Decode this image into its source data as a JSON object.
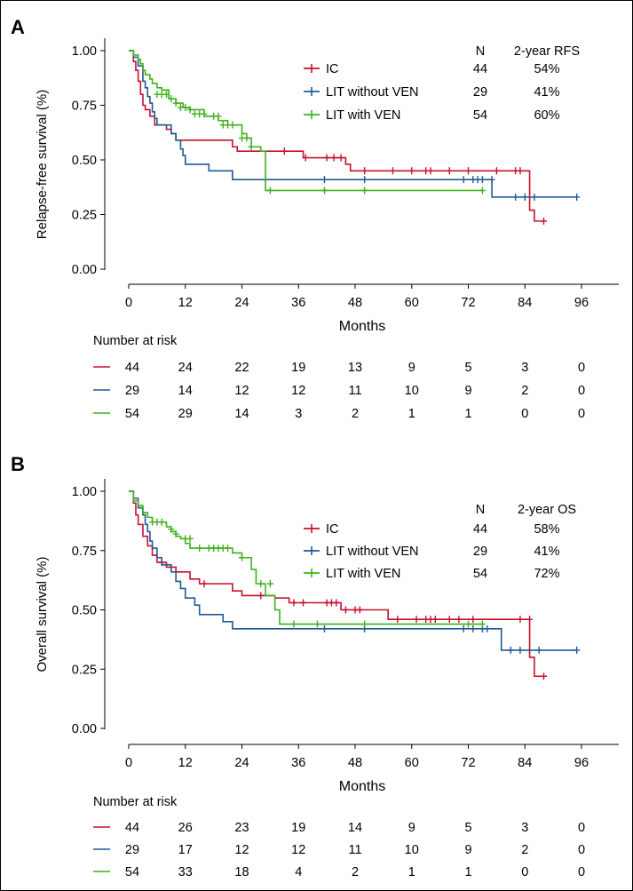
{
  "chart_data": [
    {
      "type": "line",
      "panel_label": "A",
      "ylabel": "Relapse-free survival (%)",
      "xlabel": "Months",
      "xlim": [
        0,
        96
      ],
      "ylim": [
        0,
        1
      ],
      "x_ticks": [
        "0",
        "12",
        "24",
        "36",
        "48",
        "60",
        "72",
        "84",
        "96"
      ],
      "y_ticks": [
        "0.00",
        "0.25",
        "0.50",
        "0.75",
        "1.00"
      ],
      "legend": {
        "position": "top-right",
        "header_n": "N",
        "header_stat": "2-year RFS",
        "entries": [
          {
            "name": "IC",
            "n": "44",
            "stat": "54%"
          },
          {
            "name": "LIT without VEN",
            "n": "29",
            "stat": "41%"
          },
          {
            "name": "LIT with VEN",
            "n": "54",
            "stat": "60%"
          }
        ]
      },
      "series": [
        {
          "name": "IC",
          "color": "#c8102e",
          "steps": [
            [
              0,
              1.0
            ],
            [
              1,
              0.95
            ],
            [
              1.5,
              0.91
            ],
            [
              2,
              0.86
            ],
            [
              2.5,
              0.8
            ],
            [
              3,
              0.75
            ],
            [
              3.5,
              0.73
            ],
            [
              4.5,
              0.7
            ],
            [
              5.5,
              0.66
            ],
            [
              8,
              0.64
            ],
            [
              9,
              0.62
            ],
            [
              10,
              0.59
            ],
            [
              22,
              0.56
            ],
            [
              23,
              0.54
            ],
            [
              37,
              0.51
            ],
            [
              46,
              0.48
            ],
            [
              47,
              0.45
            ],
            [
              85,
              0.27
            ],
            [
              86,
              0.22
            ],
            [
              88,
              0.22
            ]
          ],
          "censors": [
            [
              33,
              0.54
            ],
            [
              37.5,
              0.51
            ],
            [
              42,
              0.51
            ],
            [
              43.5,
              0.51
            ],
            [
              45,
              0.51
            ],
            [
              50,
              0.45
            ],
            [
              56,
              0.45
            ],
            [
              60,
              0.45
            ],
            [
              63,
              0.45
            ],
            [
              64,
              0.45
            ],
            [
              68,
              0.45
            ],
            [
              72,
              0.45
            ],
            [
              78,
              0.45
            ],
            [
              82,
              0.45
            ],
            [
              83,
              0.45
            ],
            [
              88,
              0.22
            ]
          ]
        },
        {
          "name": "LIT without VEN",
          "color": "#1f5a96",
          "steps": [
            [
              0,
              1.0
            ],
            [
              1,
              0.97
            ],
            [
              2,
              0.93
            ],
            [
              3,
              0.86
            ],
            [
              3.5,
              0.83
            ],
            [
              4,
              0.79
            ],
            [
              4.5,
              0.76
            ],
            [
              5,
              0.72
            ],
            [
              5.5,
              0.69
            ],
            [
              6,
              0.66
            ],
            [
              9,
              0.62
            ],
            [
              10,
              0.59
            ],
            [
              11,
              0.55
            ],
            [
              11.5,
              0.52
            ],
            [
              12,
              0.48
            ],
            [
              17,
              0.45
            ],
            [
              22,
              0.41
            ],
            [
              77,
              0.33
            ],
            [
              95,
              0.33
            ]
          ],
          "censors": [
            [
              41.5,
              0.41
            ],
            [
              50,
              0.41
            ],
            [
              71,
              0.41
            ],
            [
              73,
              0.41
            ],
            [
              74,
              0.41
            ],
            [
              75,
              0.41
            ],
            [
              77,
              0.41
            ],
            [
              82,
              0.33
            ],
            [
              84,
              0.33
            ],
            [
              86,
              0.33
            ],
            [
              95,
              0.33
            ]
          ]
        },
        {
          "name": "LIT with VEN",
          "color": "#3cb21a",
          "steps": [
            [
              0,
              1.0
            ],
            [
              1,
              0.98
            ],
            [
              2,
              0.96
            ],
            [
              2.5,
              0.94
            ],
            [
              3,
              0.91
            ],
            [
              3.5,
              0.89
            ],
            [
              4.5,
              0.87
            ],
            [
              5,
              0.85
            ],
            [
              6,
              0.83
            ],
            [
              7,
              0.82
            ],
            [
              8.5,
              0.78
            ],
            [
              10,
              0.76
            ],
            [
              11.5,
              0.74
            ],
            [
              13,
              0.73
            ],
            [
              16,
              0.7
            ],
            [
              19,
              0.68
            ],
            [
              21,
              0.66
            ],
            [
              24,
              0.62
            ],
            [
              25,
              0.6
            ],
            [
              26,
              0.56
            ],
            [
              28,
              0.54
            ],
            [
              29,
              0.36
            ],
            [
              75,
              0.36
            ]
          ],
          "censors": [
            [
              6,
              0.8
            ],
            [
              7,
              0.8
            ],
            [
              8,
              0.8
            ],
            [
              9,
              0.78
            ],
            [
              10,
              0.76
            ],
            [
              11,
              0.74
            ],
            [
              12,
              0.74
            ],
            [
              13,
              0.73
            ],
            [
              14,
              0.71
            ],
            [
              15,
              0.71
            ],
            [
              16,
              0.71
            ],
            [
              18,
              0.7
            ],
            [
              19,
              0.7
            ],
            [
              20,
              0.66
            ],
            [
              21,
              0.66
            ],
            [
              22,
              0.66
            ],
            [
              24,
              0.6
            ],
            [
              25,
              0.6
            ],
            [
              26,
              0.56
            ],
            [
              30,
              0.36
            ],
            [
              41.5,
              0.36
            ],
            [
              50,
              0.36
            ],
            [
              75,
              0.36
            ]
          ]
        }
      ],
      "risk_table": {
        "title": "Number at risk",
        "times": [
          0,
          12,
          24,
          36,
          48,
          60,
          72,
          84,
          96
        ],
        "rows": [
          {
            "color": "#c8102e",
            "values": [
              "44",
              "24",
              "22",
              "19",
              "13",
              "9",
              "5",
              "3",
              "0"
            ]
          },
          {
            "color": "#1f5a96",
            "values": [
              "29",
              "14",
              "12",
              "12",
              "11",
              "10",
              "9",
              "2",
              "0"
            ]
          },
          {
            "color": "#3cb21a",
            "values": [
              "54",
              "29",
              "14",
              "3",
              "2",
              "1",
              "1",
              "0",
              "0"
            ]
          }
        ]
      }
    },
    {
      "type": "line",
      "panel_label": "B",
      "ylabel": "Overall survival (%)",
      "xlabel": "Months",
      "xlim": [
        0,
        96
      ],
      "ylim": [
        0,
        1
      ],
      "x_ticks": [
        "0",
        "12",
        "24",
        "36",
        "48",
        "60",
        "72",
        "84",
        "96"
      ],
      "y_ticks": [
        "0.00",
        "0.25",
        "0.50",
        "0.75",
        "1.00"
      ],
      "legend": {
        "position": "top-right",
        "header_n": "N",
        "header_stat": "2-year OS",
        "entries": [
          {
            "name": "IC",
            "n": "44",
            "stat": "58%"
          },
          {
            "name": "LIT without VEN",
            "n": "29",
            "stat": "41%"
          },
          {
            "name": "LIT with VEN",
            "n": "54",
            "stat": "72%"
          }
        ]
      },
      "series": [
        {
          "name": "IC",
          "color": "#c8102e",
          "steps": [
            [
              0,
              1.0
            ],
            [
              1,
              0.95
            ],
            [
              1.5,
              0.9
            ],
            [
              2,
              0.86
            ],
            [
              3,
              0.81
            ],
            [
              4,
              0.77
            ],
            [
              5,
              0.73
            ],
            [
              6,
              0.7
            ],
            [
              8,
              0.68
            ],
            [
              10,
              0.66
            ],
            [
              13,
              0.63
            ],
            [
              15,
              0.61
            ],
            [
              22,
              0.58
            ],
            [
              24,
              0.56
            ],
            [
              31,
              0.55
            ],
            [
              34,
              0.53
            ],
            [
              45,
              0.5
            ],
            [
              55,
              0.46
            ],
            [
              85,
              0.3
            ],
            [
              86,
              0.22
            ],
            [
              88,
              0.22
            ]
          ],
          "censors": [
            [
              7,
              0.7
            ],
            [
              16,
              0.61
            ],
            [
              28,
              0.56
            ],
            [
              35,
              0.53
            ],
            [
              37,
              0.53
            ],
            [
              42,
              0.53
            ],
            [
              43,
              0.53
            ],
            [
              44,
              0.53
            ],
            [
              46,
              0.5
            ],
            [
              48,
              0.5
            ],
            [
              49,
              0.5
            ],
            [
              57,
              0.46
            ],
            [
              61,
              0.46
            ],
            [
              63,
              0.46
            ],
            [
              64,
              0.46
            ],
            [
              65,
              0.46
            ],
            [
              68,
              0.46
            ],
            [
              70,
              0.46
            ],
            [
              73,
              0.46
            ],
            [
              83,
              0.46
            ],
            [
              85,
              0.46
            ],
            [
              88,
              0.22
            ]
          ]
        },
        {
          "name": "LIT without VEN",
          "color": "#1f5a96",
          "steps": [
            [
              0,
              1.0
            ],
            [
              1,
              0.97
            ],
            [
              2,
              0.93
            ],
            [
              3,
              0.9
            ],
            [
              3.5,
              0.86
            ],
            [
              4,
              0.83
            ],
            [
              4.5,
              0.79
            ],
            [
              5,
              0.76
            ],
            [
              6,
              0.72
            ],
            [
              7,
              0.69
            ],
            [
              9,
              0.66
            ],
            [
              10,
              0.62
            ],
            [
              11,
              0.59
            ],
            [
              12,
              0.55
            ],
            [
              14,
              0.52
            ],
            [
              15,
              0.48
            ],
            [
              20,
              0.45
            ],
            [
              22,
              0.42
            ],
            [
              79,
              0.33
            ],
            [
              95,
              0.33
            ]
          ],
          "censors": [
            [
              41.5,
              0.42
            ],
            [
              50,
              0.42
            ],
            [
              71,
              0.42
            ],
            [
              73,
              0.42
            ],
            [
              75,
              0.42
            ],
            [
              76,
              0.42
            ],
            [
              81,
              0.33
            ],
            [
              83,
              0.33
            ],
            [
              87,
              0.33
            ],
            [
              95,
              0.33
            ]
          ]
        },
        {
          "name": "LIT with VEN",
          "color": "#3cb21a",
          "steps": [
            [
              0,
              1.0
            ],
            [
              1,
              0.96
            ],
            [
              2,
              0.94
            ],
            [
              3,
              0.91
            ],
            [
              4,
              0.89
            ],
            [
              5,
              0.87
            ],
            [
              8,
              0.85
            ],
            [
              9,
              0.83
            ],
            [
              10,
              0.81
            ],
            [
              11,
              0.8
            ],
            [
              12,
              0.78
            ],
            [
              13,
              0.76
            ],
            [
              22,
              0.74
            ],
            [
              24,
              0.72
            ],
            [
              26,
              0.67
            ],
            [
              27,
              0.61
            ],
            [
              29,
              0.56
            ],
            [
              31,
              0.5
            ],
            [
              32,
              0.44
            ],
            [
              75,
              0.44
            ]
          ],
          "censors": [
            [
              5,
              0.87
            ],
            [
              6,
              0.87
            ],
            [
              7,
              0.87
            ],
            [
              9,
              0.84
            ],
            [
              10,
              0.82
            ],
            [
              12,
              0.8
            ],
            [
              13,
              0.8
            ],
            [
              15,
              0.76
            ],
            [
              17,
              0.76
            ],
            [
              18,
              0.76
            ],
            [
              19,
              0.76
            ],
            [
              20,
              0.76
            ],
            [
              21,
              0.76
            ],
            [
              24,
              0.72
            ],
            [
              28,
              0.61
            ],
            [
              30,
              0.61
            ],
            [
              35,
              0.44
            ],
            [
              40,
              0.44
            ],
            [
              50,
              0.44
            ],
            [
              72,
              0.44
            ],
            [
              75,
              0.44
            ]
          ]
        }
      ],
      "risk_table": {
        "title": "Number at risk",
        "times": [
          0,
          12,
          24,
          36,
          48,
          60,
          72,
          84,
          96
        ],
        "rows": [
          {
            "color": "#c8102e",
            "values": [
              "44",
              "26",
              "23",
              "19",
              "14",
              "9",
              "5",
              "3",
              "0"
            ]
          },
          {
            "color": "#1f5a96",
            "values": [
              "29",
              "17",
              "12",
              "12",
              "11",
              "10",
              "9",
              "2",
              "0"
            ]
          },
          {
            "color": "#3cb21a",
            "values": [
              "54",
              "33",
              "18",
              "4",
              "2",
              "1",
              "1",
              "0",
              "0"
            ]
          }
        ]
      }
    }
  ]
}
